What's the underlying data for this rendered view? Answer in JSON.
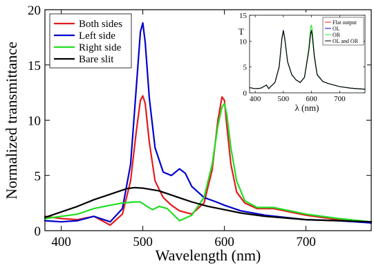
{
  "chart_data": [
    {
      "type": "line",
      "title": "",
      "xlabel": "Wavelength (nm)",
      "ylabel": "Normalized transmittance",
      "xlim": [
        380,
        780
      ],
      "ylim": [
        0,
        20
      ],
      "x_ticks": [
        400,
        500,
        600,
        700
      ],
      "y_ticks": [
        0,
        5,
        10,
        15,
        20
      ],
      "legend_position": "top-left",
      "grid": false,
      "series": [
        {
          "name": "Both sides",
          "color": "#e41a1c",
          "x": [
            380,
            400,
            420,
            440,
            460,
            475,
            485,
            492,
            497,
            500,
            503,
            508,
            515,
            525,
            535,
            545,
            560,
            575,
            585,
            592,
            597,
            600,
            603,
            608,
            615,
            625,
            640,
            660,
            700,
            740,
            780
          ],
          "y": [
            1.3,
            1.1,
            1.0,
            1.3,
            0.5,
            1.5,
            4.5,
            9.0,
            11.8,
            12.2,
            11.5,
            8.0,
            4.5,
            3.0,
            2.3,
            1.8,
            1.5,
            2.5,
            5.5,
            10.0,
            12.1,
            11.8,
            9.5,
            6.0,
            3.5,
            2.5,
            2.0,
            2.0,
            1.4,
            1.0,
            0.7
          ]
        },
        {
          "name": "Left side",
          "color": "#0000cc",
          "x": [
            380,
            400,
            420,
            440,
            460,
            475,
            485,
            492,
            497,
            500,
            503,
            508,
            515,
            525,
            535,
            545,
            552,
            560,
            575,
            590,
            600,
            620,
            650,
            700,
            740,
            780
          ],
          "y": [
            0.9,
            0.8,
            0.9,
            1.3,
            0.8,
            2.0,
            6.0,
            13.0,
            18.0,
            18.8,
            17.0,
            12.0,
            7.5,
            5.3,
            5.0,
            5.6,
            5.2,
            4.0,
            3.0,
            2.6,
            2.3,
            1.8,
            1.4,
            1.0,
            0.9,
            0.7
          ]
        },
        {
          "name": "Right side",
          "color": "#22dd22",
          "x": [
            380,
            400,
            420,
            440,
            460,
            475,
            490,
            497,
            505,
            512,
            520,
            530,
            545,
            560,
            575,
            585,
            592,
            597,
            600,
            603,
            608,
            615,
            625,
            640,
            660,
            700,
            740,
            780
          ],
          "y": [
            1.1,
            1.3,
            1.5,
            2.0,
            2.3,
            2.5,
            2.6,
            2.6,
            2.2,
            1.9,
            2.2,
            2.0,
            0.9,
            1.4,
            3.0,
            6.0,
            9.5,
            11.2,
            11.5,
            10.5,
            7.5,
            4.5,
            2.7,
            2.1,
            2.1,
            1.5,
            1.1,
            0.8
          ]
        },
        {
          "name": "Bare slit",
          "color": "#000000",
          "x": [
            380,
            400,
            420,
            440,
            460,
            480,
            490,
            500,
            520,
            540,
            560,
            580,
            600,
            620,
            650,
            700,
            740,
            780
          ],
          "y": [
            1.2,
            1.7,
            2.2,
            2.8,
            3.3,
            3.8,
            3.9,
            3.85,
            3.6,
            3.1,
            2.6,
            2.2,
            1.9,
            1.6,
            1.3,
            1.0,
            0.9,
            0.8
          ]
        }
      ]
    },
    {
      "type": "line",
      "title": "",
      "xlabel": "λ (nm)",
      "ylabel": "T",
      "xlim": [
        380,
        790
      ],
      "ylim": [
        0,
        15
      ],
      "x_ticks": [
        400,
        500,
        600,
        700
      ],
      "y_ticks": [
        0,
        5,
        10,
        15
      ],
      "legend_position": "top-right",
      "grid": false,
      "series": [
        {
          "name": "Flat output",
          "color": "#e41a1c",
          "x": [
            380,
            400,
            420,
            440,
            448,
            455,
            470,
            485,
            495,
            500,
            505,
            515,
            530,
            545,
            560,
            575,
            590,
            597,
            600,
            603,
            610,
            620,
            640,
            660,
            700,
            740,
            790
          ],
          "y": [
            1.0,
            0.8,
            0.9,
            1.5,
            0.8,
            1.2,
            2.0,
            5.0,
            10.5,
            12.0,
            10.5,
            6.0,
            3.5,
            2.5,
            2.0,
            3.0,
            8.0,
            11.5,
            12.0,
            11.0,
            7.0,
            3.5,
            2.2,
            1.8,
            1.2,
            0.9,
            0.7
          ]
        },
        {
          "name": "OL",
          "color": "#0000cc",
          "x": [
            380,
            400,
            420,
            440,
            448,
            455,
            470,
            485,
            495,
            500,
            505,
            515,
            530,
            545,
            560,
            575,
            590,
            597,
            600,
            603,
            610,
            620,
            640,
            660,
            700,
            740,
            790
          ],
          "y": [
            1.0,
            0.8,
            0.9,
            1.5,
            0.8,
            1.2,
            2.0,
            5.0,
            10.6,
            12.1,
            10.6,
            6.0,
            3.5,
            2.5,
            2.0,
            3.0,
            8.1,
            11.6,
            12.1,
            11.1,
            7.0,
            3.5,
            2.2,
            1.8,
            1.2,
            0.9,
            0.7
          ]
        },
        {
          "name": "OR",
          "color": "#22dd22",
          "x": [
            380,
            400,
            420,
            440,
            448,
            455,
            470,
            485,
            495,
            500,
            505,
            515,
            530,
            545,
            560,
            575,
            590,
            597,
            600,
            603,
            610,
            620,
            640,
            660,
            700,
            740,
            790
          ],
          "y": [
            1.0,
            0.8,
            0.9,
            1.5,
            0.8,
            1.2,
            2.0,
            5.0,
            10.4,
            11.9,
            10.4,
            6.0,
            3.5,
            2.5,
            2.0,
            3.0,
            8.5,
            12.6,
            13.1,
            12.0,
            7.4,
            3.6,
            2.2,
            1.8,
            1.2,
            0.9,
            0.7
          ]
        },
        {
          "name": "OL and OR",
          "color": "#000000",
          "x": [
            380,
            400,
            420,
            440,
            448,
            455,
            470,
            485,
            495,
            500,
            505,
            515,
            530,
            545,
            560,
            575,
            590,
            597,
            600,
            603,
            610,
            620,
            640,
            660,
            700,
            740,
            790
          ],
          "y": [
            1.0,
            0.8,
            0.9,
            1.5,
            0.8,
            1.2,
            2.0,
            5.0,
            10.5,
            12.0,
            10.5,
            6.0,
            3.5,
            2.5,
            2.0,
            3.0,
            8.0,
            11.5,
            12.0,
            11.0,
            7.0,
            3.5,
            2.2,
            1.8,
            1.2,
            0.9,
            0.7
          ]
        }
      ]
    }
  ]
}
